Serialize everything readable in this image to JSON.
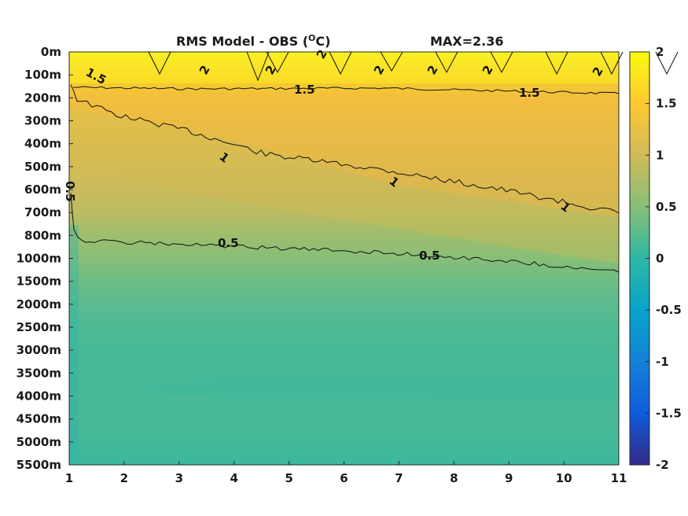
{
  "chart_data": {
    "type": "heatmap",
    "title": "RMS Model - OBS (",
    "title_unit_sup": "O",
    "title_unit_end": "C)",
    "max_label": "MAX=2.36",
    "x_ticks": [
      "1",
      "2",
      "3",
      "4",
      "5",
      "6",
      "7",
      "8",
      "9",
      "10",
      "11"
    ],
    "xlim": [
      1,
      11
    ],
    "y_ticks": [
      "0m",
      "100m",
      "200m",
      "300m",
      "400m",
      "500m",
      "600m",
      "700m",
      "800m",
      "1000m",
      "1500m",
      "2000m",
      "2500m",
      "3000m",
      "3500m",
      "4000m",
      "4500m",
      "5000m",
      "5500m"
    ],
    "colorbar": {
      "ticks": [
        "2",
        "1.5",
        "1",
        "0.5",
        "0",
        "-0.5",
        "-1",
        "-1.5",
        "-2"
      ],
      "range": [
        -2,
        2
      ],
      "colormap": "parula"
    },
    "colormap_stops": [
      "#352a87",
      "#0f5cdd",
      "#1481d6",
      "#06a4ca",
      "#2eb7a4",
      "#87bf77",
      "#d1bb59",
      "#fec832",
      "#f9fb0e"
    ],
    "depth_profile": [
      {
        "depth": "0m",
        "value": 2.1
      },
      {
        "depth": "100m",
        "value": 1.8
      },
      {
        "depth": "200m",
        "value": 1.4
      },
      {
        "depth": "300m",
        "value": 1.25
      },
      {
        "depth": "400m",
        "value": 1.15
      },
      {
        "depth": "500m",
        "value": 1.05
      },
      {
        "depth": "600m",
        "value": 0.95
      },
      {
        "depth": "700m",
        "value": 0.85
      },
      {
        "depth": "800m",
        "value": 0.65
      },
      {
        "depth": "1000m",
        "value": 0.5
      },
      {
        "depth": "1500m",
        "value": 0.35
      },
      {
        "depth": "2000m",
        "value": 0.25
      },
      {
        "depth": "2500m",
        "value": 0.18
      },
      {
        "depth": "3000m",
        "value": 0.15
      },
      {
        "depth": "3500m",
        "value": 0.14
      },
      {
        "depth": "4000m",
        "value": 0.15
      },
      {
        "depth": "4500m",
        "value": 0.15
      },
      {
        "depth": "5000m",
        "value": 0.12
      },
      {
        "depth": "5500m",
        "value": 0.08
      }
    ],
    "contours": [
      {
        "level": "2",
        "labels": [
          "2",
          "2",
          "2",
          "2",
          "2",
          "2",
          "2"
        ]
      },
      {
        "level": "1.5",
        "labels": [
          "1.5",
          "1.5",
          "1.5"
        ]
      },
      {
        "level": "1",
        "labels": [
          "1",
          "1",
          "1",
          "1"
        ]
      },
      {
        "level": "0.5",
        "labels": [
          "0.5",
          "0.5",
          "0.5"
        ]
      }
    ],
    "grid": false
  }
}
